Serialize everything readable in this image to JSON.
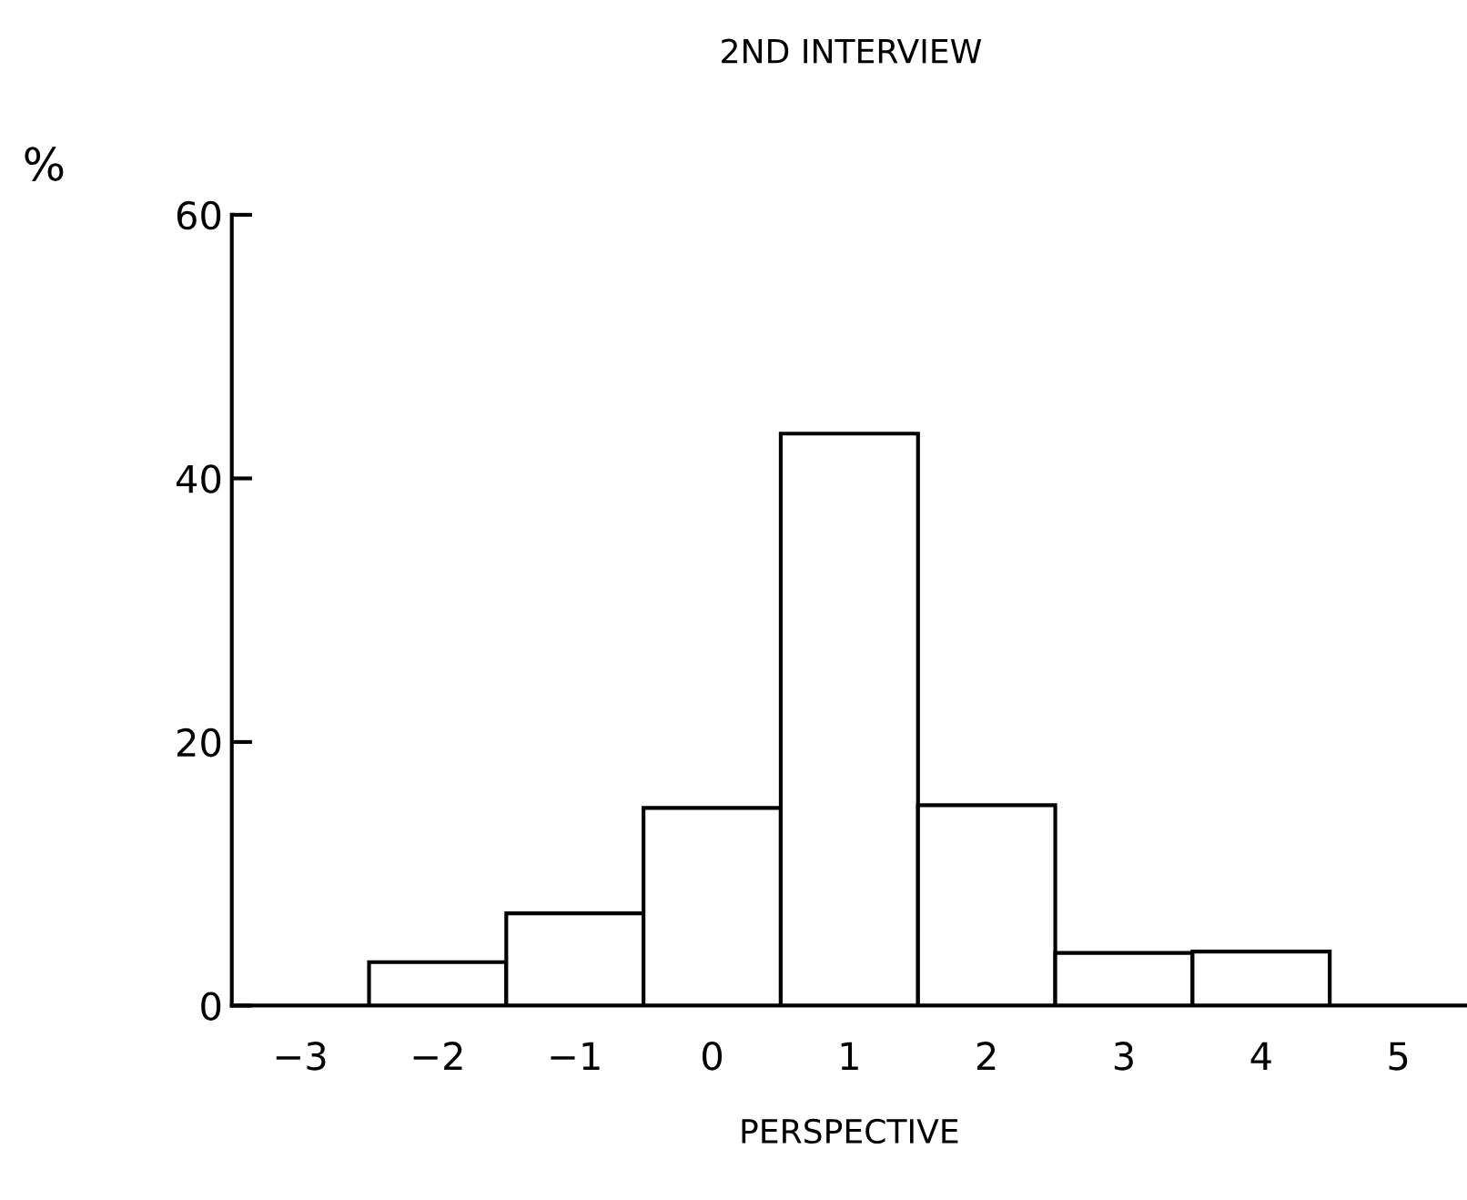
{
  "chart_data": {
    "type": "bar",
    "title": "2ND INTERVIEW",
    "xlabel": "PERSPECTIVE",
    "ylabel": "%",
    "categories": [
      "−3",
      "−2",
      "−1",
      "0",
      "1",
      "2",
      "3",
      "4",
      "5"
    ],
    "values": [
      0,
      3.3,
      7,
      15,
      43.4,
      15.2,
      4,
      4.1,
      0
    ],
    "color": "#ffffff",
    "ylim": [
      0,
      60
    ],
    "yticks": [
      0,
      20,
      40,
      60
    ],
    "grid": false
  }
}
